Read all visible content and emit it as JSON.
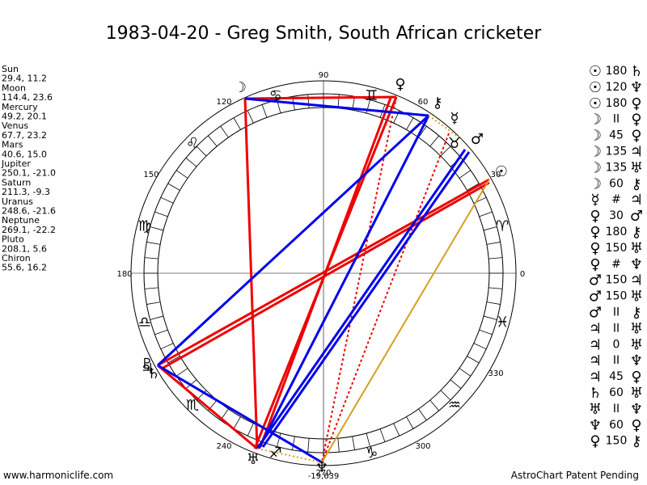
{
  "title": "1983-04-20 - Greg Smith, South African cricketer",
  "planets": [
    {
      "name": "Sun",
      "position": "29.4, 11.2"
    },
    {
      "name": "Moon",
      "position": "114.4, 23.6"
    },
    {
      "name": "Mercury",
      "position": "49.2, 20.1"
    },
    {
      "name": "Venus",
      "position": "67.7, 23.2"
    },
    {
      "name": "Mars",
      "position": "40.6, 15.0"
    },
    {
      "name": "Jupiter",
      "position": "250.1, -21.0"
    },
    {
      "name": "Saturn",
      "position": "211.3, -9.3"
    },
    {
      "name": "Uranus",
      "position": "248.6, -21.6"
    },
    {
      "name": "Neptune",
      "position": "269.1, -22.2"
    },
    {
      "name": "Pluto",
      "position": "208.1, 5.6"
    },
    {
      "name": "Chiron",
      "position": "55.6, 16.2"
    }
  ],
  "degree_labels": [
    0,
    30,
    60,
    90,
    120,
    150,
    180,
    240,
    270,
    300,
    330
  ],
  "bottom_value": "-19,639",
  "signs": [
    "♈",
    "♉",
    "♊",
    "♋",
    "♌",
    "♍",
    "♎",
    "♏",
    "♐",
    "♑",
    "♒",
    "♓"
  ],
  "wheel_glyphs": [
    "☽",
    "♀",
    "⚷",
    "☿",
    "♂",
    "☉",
    "♇",
    "♄",
    "♃",
    "♅",
    "♆"
  ],
  "aspects": [
    [
      "☉",
      "180",
      "♄"
    ],
    [
      "☉",
      "120",
      "♆"
    ],
    [
      "☉",
      "180",
      "♀"
    ],
    [
      "☽",
      "II",
      "♀"
    ],
    [
      "☽",
      "45",
      "♀"
    ],
    [
      "☽",
      "135",
      "♃"
    ],
    [
      "☽",
      "135",
      "♅"
    ],
    [
      "☽",
      "60",
      "⚷"
    ],
    [
      "☿",
      "#",
      "♃"
    ],
    [
      "♀",
      "30",
      "♂"
    ],
    [
      "♀",
      "180",
      "⚷"
    ],
    [
      "♀",
      "150",
      "♅"
    ],
    [
      "♀",
      "#",
      "♆"
    ],
    [
      "♂",
      "150",
      "♃"
    ],
    [
      "♂",
      "150",
      "♅"
    ],
    [
      "♂",
      "II",
      "⚷"
    ],
    [
      "♃",
      "II",
      "♅"
    ],
    [
      "♃",
      "0",
      "♅"
    ],
    [
      "♃",
      "II",
      "♆"
    ],
    [
      "♃",
      "45",
      "♀"
    ],
    [
      "♄",
      "60",
      "♅"
    ],
    [
      "♅",
      "II",
      "♆"
    ],
    [
      "♆",
      "60",
      "♀"
    ],
    [
      "♀",
      "150",
      "⚷"
    ]
  ],
  "footer_left": "www.harmoniclife.com",
  "footer_right": "AstroChart Patent Pending"
}
